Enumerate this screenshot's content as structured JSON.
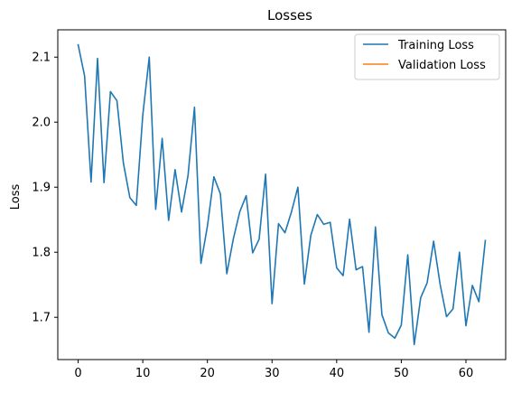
{
  "chart_data": {
    "type": "line",
    "title": "Losses",
    "xlabel": "",
    "ylabel": "Loss",
    "xlim": [
      -3.15,
      66.15
    ],
    "ylim": [
      1.635,
      2.142
    ],
    "xticks": [
      0,
      10,
      20,
      30,
      40,
      50,
      60
    ],
    "yticks": [
      1.7,
      1.8,
      1.9,
      2.0,
      2.1
    ],
    "grid": false,
    "legend_position": "top-right",
    "series": [
      {
        "name": "Training Loss",
        "color": "#1f77b4",
        "x": [
          0,
          1,
          2,
          3,
          4,
          5,
          6,
          7,
          8,
          9,
          10,
          11,
          12,
          13,
          14,
          15,
          16,
          17,
          18,
          19,
          20,
          21,
          22,
          23,
          24,
          25,
          26,
          27,
          28,
          29,
          30,
          31,
          32,
          33,
          34,
          35,
          36,
          37,
          38,
          39,
          40,
          41,
          42,
          43,
          44,
          45,
          46,
          47,
          48,
          49,
          50,
          51,
          52,
          53,
          54,
          55,
          56,
          57,
          58,
          59,
          60,
          61,
          62,
          63
        ],
        "values": [
          2.119,
          2.071,
          1.908,
          2.098,
          1.907,
          2.047,
          2.033,
          1.937,
          1.884,
          1.872,
          2.011,
          2.1,
          1.866,
          1.975,
          1.849,
          1.927,
          1.862,
          1.918,
          2.023,
          1.783,
          1.84,
          1.916,
          1.89,
          1.767,
          1.82,
          1.862,
          1.887,
          1.799,
          1.82,
          1.92,
          1.721,
          1.844,
          1.83,
          1.862,
          1.9,
          1.751,
          1.826,
          1.858,
          1.843,
          1.846,
          1.776,
          1.764,
          1.851,
          1.773,
          1.778,
          1.677,
          1.839,
          1.704,
          1.676,
          1.668,
          1.688,
          1.796,
          1.658,
          1.73,
          1.753,
          1.817,
          1.751,
          1.701,
          1.713,
          1.8,
          1.687,
          1.749,
          1.724,
          1.818
        ]
      },
      {
        "name": "Validation Loss",
        "color": "#ff7f0e",
        "x": [],
        "values": []
      }
    ]
  }
}
